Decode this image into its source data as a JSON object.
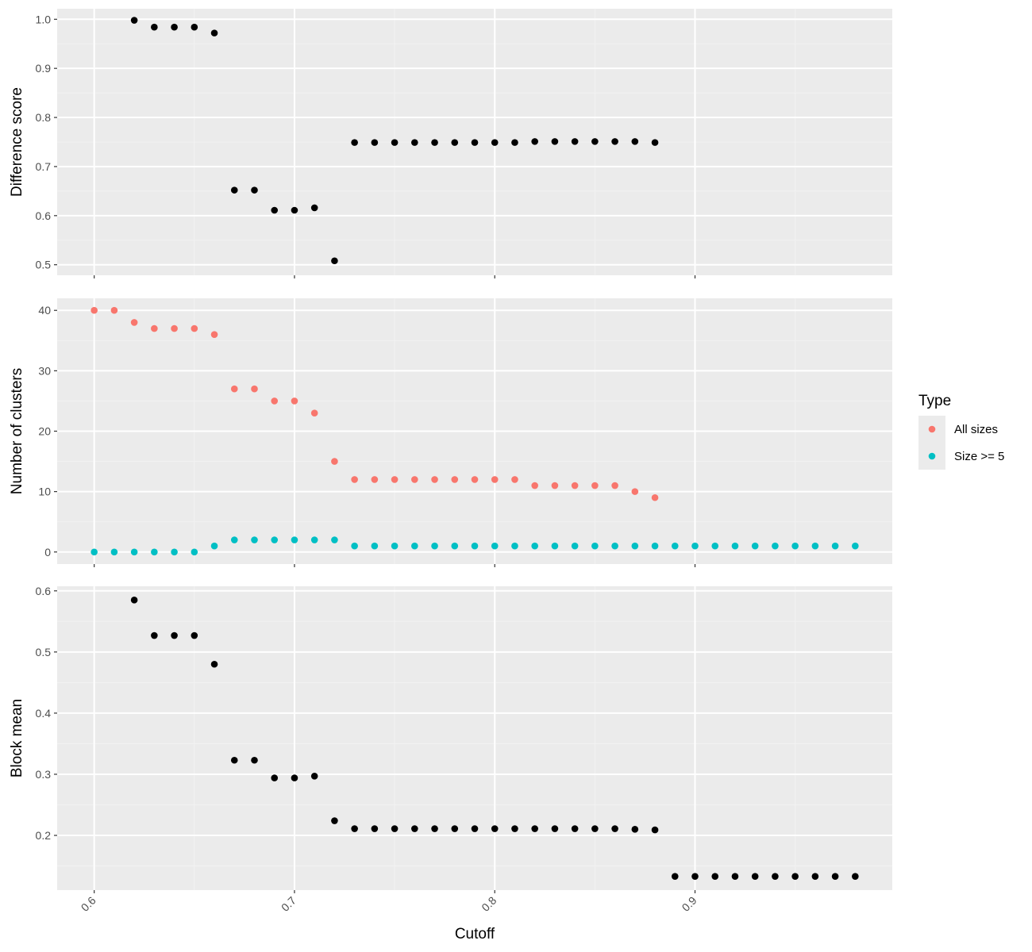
{
  "colors": {
    "panel_bg": "#ebebeb",
    "grid_major": "#ffffff",
    "grid_minor": "#f2f2f2",
    "tick": "#333333",
    "point_black": "#000000",
    "all_sizes": "#F8766D",
    "size_ge5": "#00BFC4",
    "legend_key_bg": "#ebebeb"
  },
  "chart_data": {
    "type": "scatter",
    "xlabel": "Cutoff",
    "x_ticks": [
      0.6,
      0.7,
      0.8,
      0.9
    ],
    "x_tick_labels": [
      "0.6",
      "0.7",
      "0.8",
      "0.9"
    ],
    "xlim": [
      0.5815,
      0.9985
    ],
    "legend": {
      "title": "Type",
      "position": "right",
      "entries": [
        {
          "label": "All sizes",
          "color": "#F8766D"
        },
        {
          "label": "Size >= 5",
          "color": "#00BFC4"
        }
      ]
    },
    "panels": [
      {
        "id": "difference",
        "ylabel": "Difference score",
        "ylim": [
          0.4785,
          1.0215
        ],
        "y_ticks": [
          0.5,
          0.6,
          0.7,
          0.8,
          0.9,
          1.0
        ],
        "y_tick_labels": [
          "0.5",
          "0.6",
          "0.7",
          "0.8",
          "0.9",
          "1.0"
        ],
        "series": [
          {
            "color": "#000000",
            "x": [
              0.62,
              0.63,
              0.64,
              0.65,
              0.66,
              0.67,
              0.68,
              0.69,
              0.7,
              0.71,
              0.72,
              0.73,
              0.74,
              0.75,
              0.76,
              0.77,
              0.78,
              0.79,
              0.8,
              0.81,
              0.82,
              0.83,
              0.84,
              0.85,
              0.86,
              0.87,
              0.88
            ],
            "y": [
              0.998,
              0.984,
              0.984,
              0.984,
              0.972,
              0.652,
              0.652,
              0.611,
              0.611,
              0.616,
              0.508,
              0.749,
              0.749,
              0.749,
              0.749,
              0.749,
              0.749,
              0.749,
              0.749,
              0.749,
              0.751,
              0.751,
              0.751,
              0.751,
              0.751,
              0.751,
              0.749
            ]
          }
        ]
      },
      {
        "id": "clusters",
        "ylabel": "Number of clusters",
        "ylim": [
          -2,
          42
        ],
        "y_ticks": [
          0,
          10,
          20,
          30,
          40
        ],
        "y_tick_labels": [
          "0",
          "10",
          "20",
          "30",
          "40"
        ],
        "series": [
          {
            "name": "All sizes",
            "color": "#F8766D",
            "x": [
              0.6,
              0.61,
              0.62,
              0.63,
              0.64,
              0.65,
              0.66,
              0.67,
              0.68,
              0.69,
              0.7,
              0.71,
              0.72,
              0.73,
              0.74,
              0.75,
              0.76,
              0.77,
              0.78,
              0.79,
              0.8,
              0.81,
              0.82,
              0.83,
              0.84,
              0.85,
              0.86,
              0.87,
              0.88
            ],
            "y": [
              40,
              40,
              38,
              37,
              37,
              37,
              36,
              27,
              27,
              25,
              25,
              23,
              15,
              12,
              12,
              12,
              12,
              12,
              12,
              12,
              12,
              12,
              11,
              11,
              11,
              11,
              11,
              10,
              9
            ]
          },
          {
            "name": "Size >= 5",
            "color": "#00BFC4",
            "x": [
              0.6,
              0.61,
              0.62,
              0.63,
              0.64,
              0.65,
              0.66,
              0.67,
              0.68,
              0.69,
              0.7,
              0.71,
              0.72,
              0.73,
              0.74,
              0.75,
              0.76,
              0.77,
              0.78,
              0.79,
              0.8,
              0.81,
              0.82,
              0.83,
              0.84,
              0.85,
              0.86,
              0.87,
              0.88,
              0.89,
              0.9,
              0.91,
              0.92,
              0.93,
              0.94,
              0.95,
              0.96,
              0.97,
              0.98
            ],
            "y": [
              0,
              0,
              0,
              0,
              0,
              0,
              1,
              2,
              2,
              2,
              2,
              2,
              2,
              1,
              1,
              1,
              1,
              1,
              1,
              1,
              1,
              1,
              1,
              1,
              1,
              1,
              1,
              1,
              1,
              1,
              1,
              1,
              1,
              1,
              1,
              1,
              1,
              1,
              1
            ]
          }
        ]
      },
      {
        "id": "blockmean",
        "ylabel": "Block mean",
        "ylim": [
          0.1105,
          0.6075
        ],
        "y_ticks": [
          0.2,
          0.3,
          0.4,
          0.5,
          0.6
        ],
        "y_tick_labels": [
          "0.2",
          "0.3",
          "0.4",
          "0.5",
          "0.6"
        ],
        "series": [
          {
            "color": "#000000",
            "x": [
              0.62,
              0.63,
              0.64,
              0.65,
              0.66,
              0.67,
              0.68,
              0.69,
              0.7,
              0.71,
              0.72,
              0.73,
              0.74,
              0.75,
              0.76,
              0.77,
              0.78,
              0.79,
              0.8,
              0.81,
              0.82,
              0.83,
              0.84,
              0.85,
              0.86,
              0.87,
              0.88,
              0.89,
              0.9,
              0.91,
              0.92,
              0.93,
              0.94,
              0.95,
              0.96,
              0.97,
              0.98
            ],
            "y": [
              0.585,
              0.527,
              0.527,
              0.527,
              0.48,
              0.323,
              0.323,
              0.294,
              0.294,
              0.297,
              0.224,
              0.211,
              0.211,
              0.211,
              0.211,
              0.211,
              0.211,
              0.211,
              0.211,
              0.211,
              0.211,
              0.211,
              0.211,
              0.211,
              0.211,
              0.21,
              0.209,
              0.133,
              0.133,
              0.133,
              0.133,
              0.133,
              0.133,
              0.133,
              0.133,
              0.133,
              0.133
            ]
          }
        ]
      }
    ]
  }
}
